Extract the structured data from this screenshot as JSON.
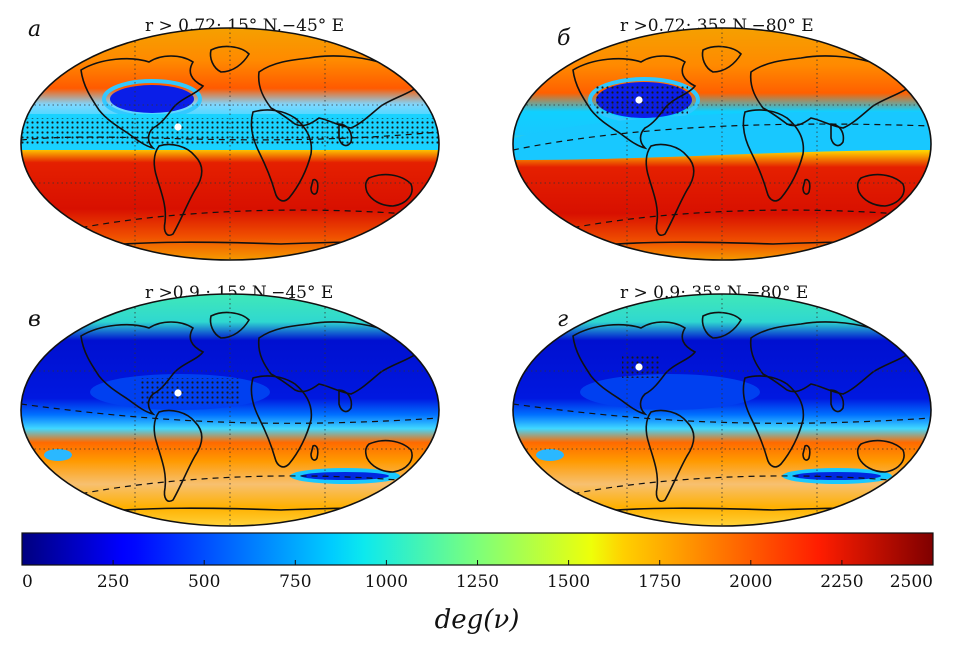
{
  "chart_data": {
    "type": "heatmap",
    "projection": "Robinson-like world map",
    "colormap": "jet",
    "colorbar": {
      "label": "deg(ν)",
      "min": 0,
      "max": 2500,
      "ticks": [
        "0",
        "250",
        "500",
        "750",
        "1000",
        "1250",
        "1500",
        "1750",
        "2000",
        "2250",
        "2500"
      ]
    },
    "panels": [
      {
        "label": "а",
        "title": "r > 0.72; 15° N,−45° E",
        "threshold": 0.72,
        "point": {
          "lat": 15,
          "lon": -45
        },
        "hatch": "tropical belt",
        "background": "high"
      },
      {
        "label": "б",
        "title": "r >0.72; 35° N,−80° E",
        "threshold": 0.72,
        "point": {
          "lat": 35,
          "lon": -80
        },
        "hatch": "eastern North America",
        "background": "high"
      },
      {
        "label": "в",
        "title": "r >0.9  ; 15° N,−45° E",
        "threshold": 0.9,
        "point": {
          "lat": 15,
          "lon": -45
        },
        "hatch": "tropical Atlantic",
        "background": "low"
      },
      {
        "label": "г",
        "title": "r > 0.9; 35° N,−80° E",
        "threshold": 0.9,
        "point": {
          "lat": 35,
          "lon": -80
        },
        "hatch": "eastern North America",
        "background": "low"
      }
    ]
  }
}
